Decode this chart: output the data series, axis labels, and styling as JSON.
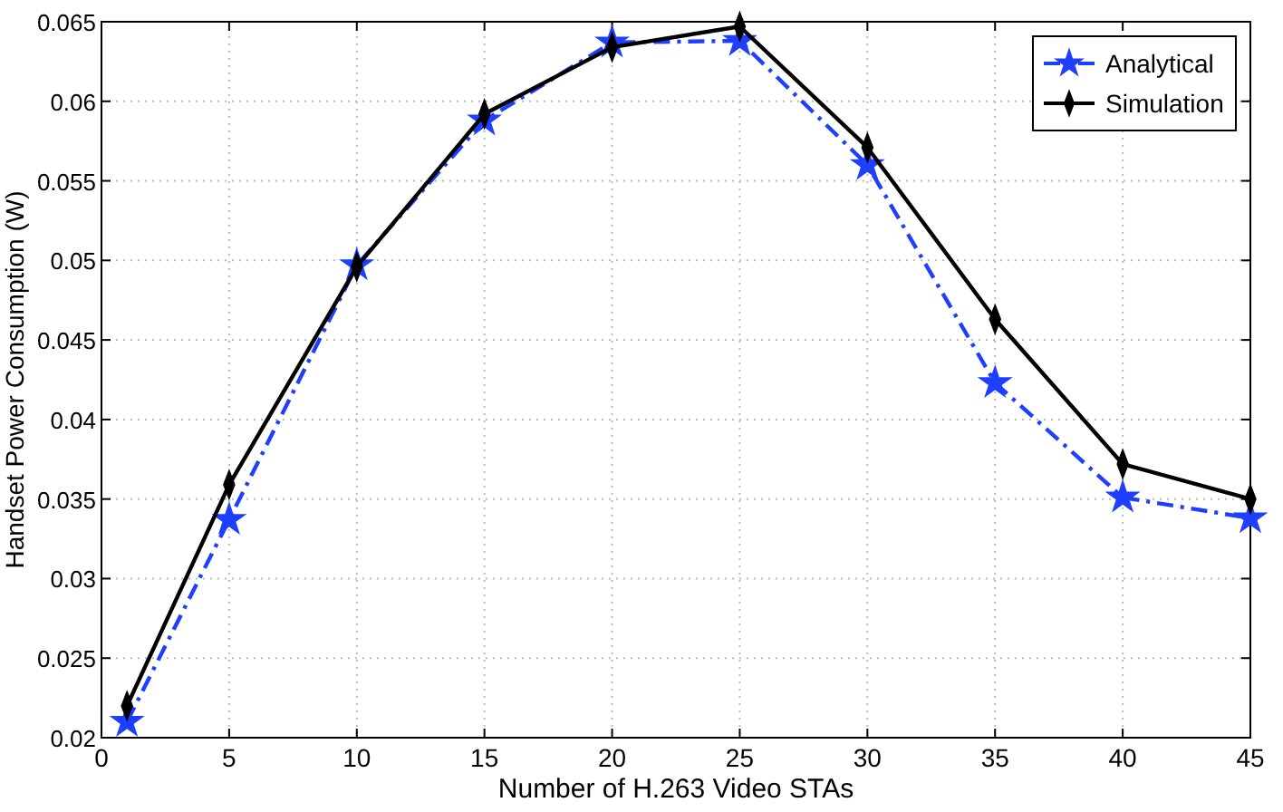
{
  "chart_data": {
    "type": "line",
    "xlabel": "Number of H.263 Video STAs",
    "ylabel": "Handset Power Consumption (W)",
    "x": [
      1,
      5,
      10,
      15,
      20,
      25,
      30,
      35,
      40,
      45
    ],
    "series": [
      {
        "name": "Analytical",
        "color": "#1f3fff",
        "marker": "star",
        "line_style": "dashed",
        "values": [
          0.021,
          0.0337,
          0.0497,
          0.0588,
          0.0637,
          0.0638,
          0.056,
          0.0423,
          0.0351,
          0.0338
        ]
      },
      {
        "name": "Simulation",
        "color": "#000000",
        "marker": "diamond",
        "line_style": "solid",
        "values": [
          0.022,
          0.0359,
          0.0496,
          0.0592,
          0.0634,
          0.0647,
          0.0571,
          0.0463,
          0.0372,
          0.035
        ]
      }
    ],
    "xlim": [
      0,
      45
    ],
    "xticks": [
      0,
      5,
      10,
      15,
      20,
      25,
      30,
      35,
      40,
      45
    ],
    "ylim": [
      0.02,
      0.065
    ],
    "yticks": [
      0.02,
      0.025,
      0.03,
      0.035,
      0.04,
      0.045,
      0.05,
      0.055,
      0.06,
      0.065
    ],
    "grid": true,
    "legend": "top right"
  }
}
